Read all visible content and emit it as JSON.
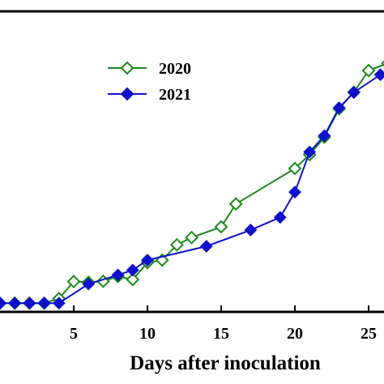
{
  "chart_data": {
    "type": "line",
    "title": "",
    "xlabel": "Days after inoculation",
    "ylabel": "",
    "xlim": [
      0,
      26.5
    ],
    "ylim": [
      0,
      1
    ],
    "grid": false,
    "legend_position": "top-center",
    "x_ticks": [
      5,
      10,
      15,
      20,
      25
    ],
    "x_tick_labels": [
      "5",
      "10",
      "15",
      "20",
      "25"
    ],
    "series": [
      {
        "name": "2020",
        "color": "#1a8a1a",
        "marker": "open-diamond",
        "points": [
          {
            "x": 0,
            "y": 0.006
          },
          {
            "x": 1,
            "y": 0.006
          },
          {
            "x": 2,
            "y": 0.006
          },
          {
            "x": 3,
            "y": 0.006
          },
          {
            "x": 4,
            "y": 0.025
          },
          {
            "x": 5,
            "y": 0.095
          },
          {
            "x": 6,
            "y": 0.092
          },
          {
            "x": 7,
            "y": 0.096
          },
          {
            "x": 8,
            "y": 0.116
          },
          {
            "x": 9,
            "y": 0.103
          },
          {
            "x": 10,
            "y": 0.173
          },
          {
            "x": 11,
            "y": 0.183
          },
          {
            "x": 12,
            "y": 0.246
          },
          {
            "x": 13,
            "y": 0.276
          },
          {
            "x": 15,
            "y": 0.32
          },
          {
            "x": 16,
            "y": 0.414
          },
          {
            "x": 20,
            "y": 0.56
          },
          {
            "x": 21,
            "y": 0.617
          },
          {
            "x": 22,
            "y": 0.689
          },
          {
            "x": 23,
            "y": 0.806
          },
          {
            "x": 24,
            "y": 0.874
          },
          {
            "x": 25,
            "y": 0.963
          },
          {
            "x": 26.3,
            "y": 0.993
          }
        ]
      },
      {
        "name": "2021",
        "color": "#1010cc",
        "marker": "filled-diamond",
        "points": [
          {
            "x": 0,
            "y": 0.006
          },
          {
            "x": 1,
            "y": 0.006
          },
          {
            "x": 2,
            "y": 0.006
          },
          {
            "x": 3,
            "y": 0.006
          },
          {
            "x": 4,
            "y": 0.006
          },
          {
            "x": 6,
            "y": 0.085
          },
          {
            "x": 8,
            "y": 0.122
          },
          {
            "x": 9,
            "y": 0.142
          },
          {
            "x": 10,
            "y": 0.183
          },
          {
            "x": 14,
            "y": 0.24
          },
          {
            "x": 17,
            "y": 0.307
          },
          {
            "x": 19,
            "y": 0.359
          },
          {
            "x": 20,
            "y": 0.463
          },
          {
            "x": 21,
            "y": 0.628
          },
          {
            "x": 22,
            "y": 0.695
          },
          {
            "x": 23,
            "y": 0.81
          },
          {
            "x": 24,
            "y": 0.873
          },
          {
            "x": 25.8,
            "y": 0.946
          }
        ]
      }
    ]
  }
}
